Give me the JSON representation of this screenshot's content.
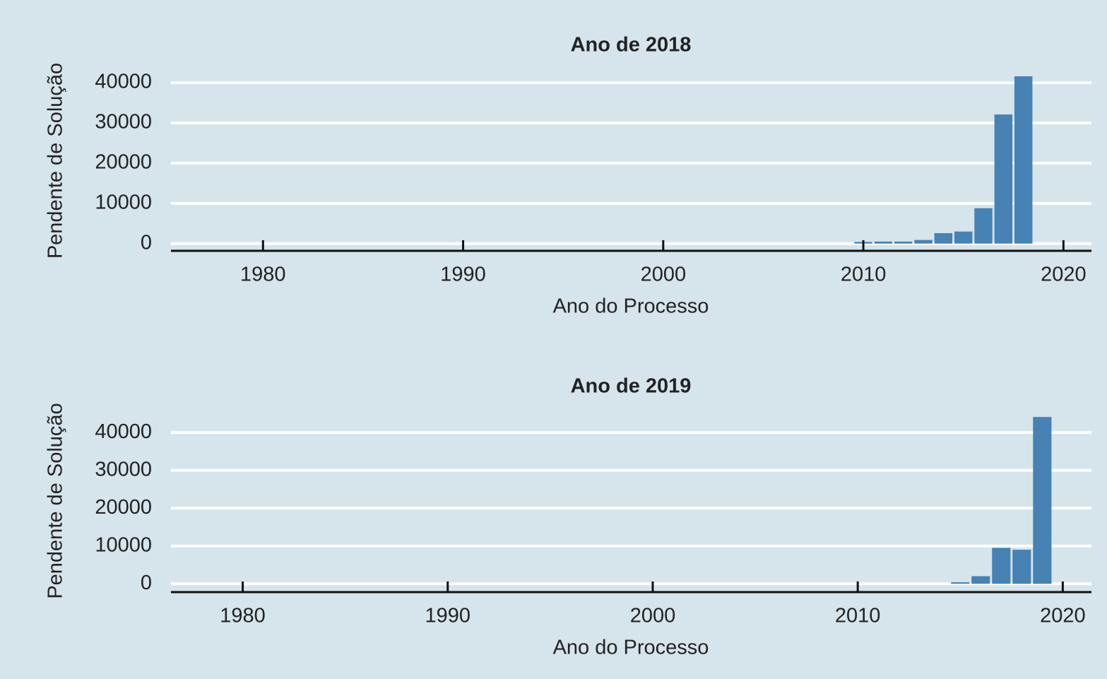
{
  "chart_data": [
    {
      "type": "bar",
      "title": "Ano de 2018",
      "x_label": "Ano do Processo",
      "y_label": "Pendente de Solução",
      "x": [
        2010,
        2011,
        2012,
        2013,
        2014,
        2015,
        2016,
        2017,
        2018
      ],
      "values": [
        400,
        500,
        500,
        900,
        2600,
        3000,
        8800,
        32100,
        41600
      ],
      "color": "#4682b4",
      "xlim": [
        1975.4,
        2021.4
      ],
      "xticks": [
        1980,
        1990,
        2000,
        2010,
        2020
      ],
      "ylim": [
        -1800,
        43000
      ],
      "yticks": [
        0,
        10000,
        20000,
        30000,
        40000
      ],
      "grid": true
    },
    {
      "type": "bar",
      "title": "Ano de 2019",
      "x_label": "Ano do Processo",
      "y_label": "Pendente de Solução",
      "x": [
        2015,
        2016,
        2017,
        2018,
        2019
      ],
      "values": [
        400,
        2000,
        9500,
        9000,
        44100
      ],
      "color": "#4682b4",
      "xlim": [
        1976.5,
        2021.4
      ],
      "xticks": [
        1980,
        1990,
        2000,
        2010,
        2020
      ],
      "ylim": [
        -2200,
        46000
      ],
      "yticks": [
        0,
        10000,
        20000,
        30000,
        40000
      ],
      "grid": true
    }
  ]
}
